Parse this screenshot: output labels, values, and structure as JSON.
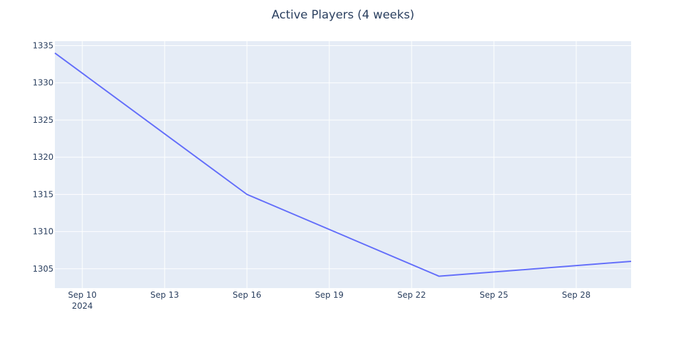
{
  "chart_data": {
    "type": "line",
    "title": "Active Players (4 weeks)",
    "xlabel": "",
    "ylabel": "",
    "x": [
      "2024-09-09",
      "2024-09-16",
      "2024-09-23",
      "2024-09-30"
    ],
    "series": [
      {
        "values": [
          1334,
          1315,
          1304,
          1306
        ],
        "color": "#636efa"
      }
    ],
    "xlim": [
      "2024-09-09",
      "2024-09-30"
    ],
    "ylim": [
      1302.4,
      1335.6
    ],
    "x_ticks": [
      {
        "date": "2024-09-10",
        "label": "Sep 10",
        "year": "2024"
      },
      {
        "date": "2024-09-13",
        "label": "Sep 13"
      },
      {
        "date": "2024-09-16",
        "label": "Sep 16"
      },
      {
        "date": "2024-09-19",
        "label": "Sep 19"
      },
      {
        "date": "2024-09-22",
        "label": "Sep 22"
      },
      {
        "date": "2024-09-25",
        "label": "Sep 25"
      },
      {
        "date": "2024-09-28",
        "label": "Sep 28"
      }
    ],
    "y_ticks": [
      1305,
      1310,
      1315,
      1320,
      1325,
      1330,
      1335
    ],
    "grid": true,
    "plot_bgcolor": "#e5ecf6",
    "grid_color": "#ffffff"
  }
}
